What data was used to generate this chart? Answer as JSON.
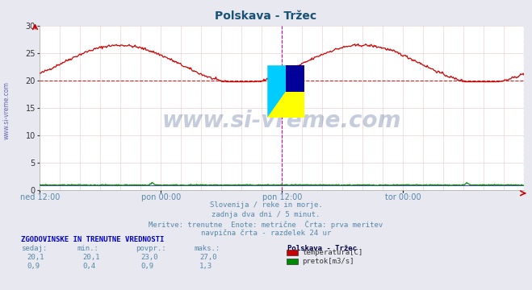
{
  "title": "Polskava - Tržec",
  "title_color": "#1a5276",
  "bg_color": "#e8e8f0",
  "plot_bg_color": "#ffffff",
  "grid_color_h": "#e8c8c8",
  "grid_color_v": "#e8c8c8",
  "xlabel_ticks": [
    "ned 12:00",
    "pon 00:00",
    "pon 12:00",
    "tor 00:00"
  ],
  "xlabel_tick_pos": [
    0.0,
    0.25,
    0.5,
    0.75
  ],
  "ylim": [
    0,
    30
  ],
  "yticks": [
    0,
    5,
    10,
    15,
    20,
    25,
    30
  ],
  "temp_avg": 20.1,
  "flow_avg": 0.9,
  "temp_color": "#cc0000",
  "flow_color": "#008800",
  "avg_flow_color": "#0000cc",
  "vline_color": "#cc00cc",
  "watermark_text": "www.si-vreme.com",
  "watermark_color": "#1a3a7a",
  "watermark_alpha": 0.25,
  "info_text1": "Slovenija / reke in morje.",
  "info_text2": "zadnja dva dni / 5 minut.",
  "info_text3": "Meritve: trenutne  Enote: metrične  Črta: prva meritev",
  "info_text4": "navpična črta - razdelek 24 ur",
  "table_header": "ZGODOVINSKE IN TRENUTNE VREDNOSTI",
  "col_headers": [
    "sedaj:",
    "min.:",
    "povpr.:",
    "maks.:"
  ],
  "col_values_temp": [
    "20,1",
    "20,1",
    "23,0",
    "27,0"
  ],
  "col_values_flow": [
    "0,9",
    "0,4",
    "0,9",
    "1,3"
  ],
  "legend_station": "Polskava - Tržec",
  "legend_items": [
    {
      "label": "temperatura[C]",
      "color": "#cc0000"
    },
    {
      "label": "pretok[m3/s]",
      "color": "#008800"
    }
  ],
  "sidebar_text": "www.si-vreme.com",
  "sidebar_color": "#4444aa",
  "info_color": "#5588aa",
  "table_color": "#5588aa",
  "table_header_color": "#0000cc"
}
